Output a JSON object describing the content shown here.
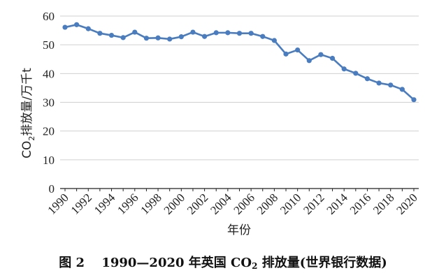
{
  "chart_data": {
    "type": "line",
    "x": [
      1990,
      1991,
      1992,
      1993,
      1994,
      1995,
      1996,
      1997,
      1998,
      1999,
      2000,
      2001,
      2002,
      2003,
      2004,
      2005,
      2006,
      2007,
      2008,
      2009,
      2010,
      2011,
      2012,
      2013,
      2014,
      2015,
      2016,
      2017,
      2018,
      2019,
      2020
    ],
    "series": [
      {
        "values": [
          56.1,
          57.0,
          55.6,
          54.0,
          53.3,
          52.5,
          54.4,
          52.3,
          52.4,
          52.0,
          52.8,
          54.4,
          52.9,
          54.2,
          54.2,
          54.0,
          54.0,
          52.9,
          51.5,
          46.8,
          48.2,
          44.5,
          46.6,
          45.3,
          41.6,
          40.1,
          38.2,
          36.7,
          36.0,
          34.5,
          30.9
        ],
        "color": "#4a7cc0"
      }
    ],
    "xticks": [
      "1990",
      "1992",
      "1994",
      "1996",
      "1998",
      "2000",
      "2002",
      "2004",
      "2006",
      "2008",
      "2010",
      "2012",
      "2014",
      "2016",
      "2018",
      "2020"
    ],
    "yticks": [
      "0",
      "10",
      "20",
      "30",
      "40",
      "50",
      "60"
    ],
    "ylim": [
      0,
      60
    ],
    "xlabel": "年份",
    "ylabel_main": "CO",
    "ylabel_sub": "2",
    "ylabel_rest": "排放量/万千t",
    "grid": "horizontal"
  },
  "caption": {
    "prefix": "图 2　 1990—2020 年英国 CO",
    "sub": "2",
    "suffix": " 排放量(世界银行数据)"
  }
}
